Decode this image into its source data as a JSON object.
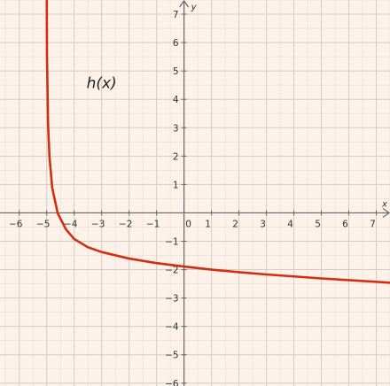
{
  "chart_data": {
    "type": "line",
    "title": "",
    "xlabel": "x",
    "ylabel": "y",
    "xlim": [
      -6.7,
      7.5
    ],
    "ylim": [
      -6.1,
      7.5
    ],
    "grid": true,
    "x_ticks": [
      -6,
      -5,
      -4,
      -3,
      -2,
      -1,
      1,
      2,
      3,
      4,
      5,
      6,
      7
    ],
    "x_tick_labels": [
      "−6",
      "−5",
      "−4",
      "−3",
      "−2",
      "−1",
      "1",
      "2",
      "3",
      "4",
      "5",
      "6",
      "7"
    ],
    "y_ticks": [
      -6,
      -5,
      -4,
      -3,
      -2,
      -1,
      1,
      2,
      3,
      4,
      5,
      6,
      7
    ],
    "y_tick_labels": [
      "−6",
      "−5",
      "−4",
      "−3",
      "−2",
      "−1",
      "1",
      "2",
      "3",
      "4",
      "5",
      "6",
      "7"
    ],
    "origin_label": "0",
    "colors": {
      "background": "#fdf2ea",
      "grid": "#d3ccc7",
      "axes": "#666666",
      "curve": "#d12e12"
    },
    "series": [
      {
        "name": "h(x)",
        "x": [
          -4.999,
          -4.99,
          -4.95,
          -4.9,
          -4.8,
          -4.6,
          -4.3,
          -4,
          -3.5,
          -3,
          -2,
          -1,
          0,
          1,
          2,
          3,
          4,
          5,
          6,
          7,
          7.5
        ],
        "y": [
          8.22,
          5.59,
          3.12,
          2.0,
          0.89,
          -0.01,
          -0.58,
          -0.92,
          -1.21,
          -1.38,
          -1.61,
          -1.77,
          -1.89,
          -2.0,
          -2.09,
          -2.17,
          -2.24,
          -2.31,
          -2.37,
          -2.43,
          -2.46
        ]
      }
    ],
    "annotations": [
      {
        "text": "h(x)",
        "x": -3.0,
        "y": 4.4
      }
    ]
  }
}
